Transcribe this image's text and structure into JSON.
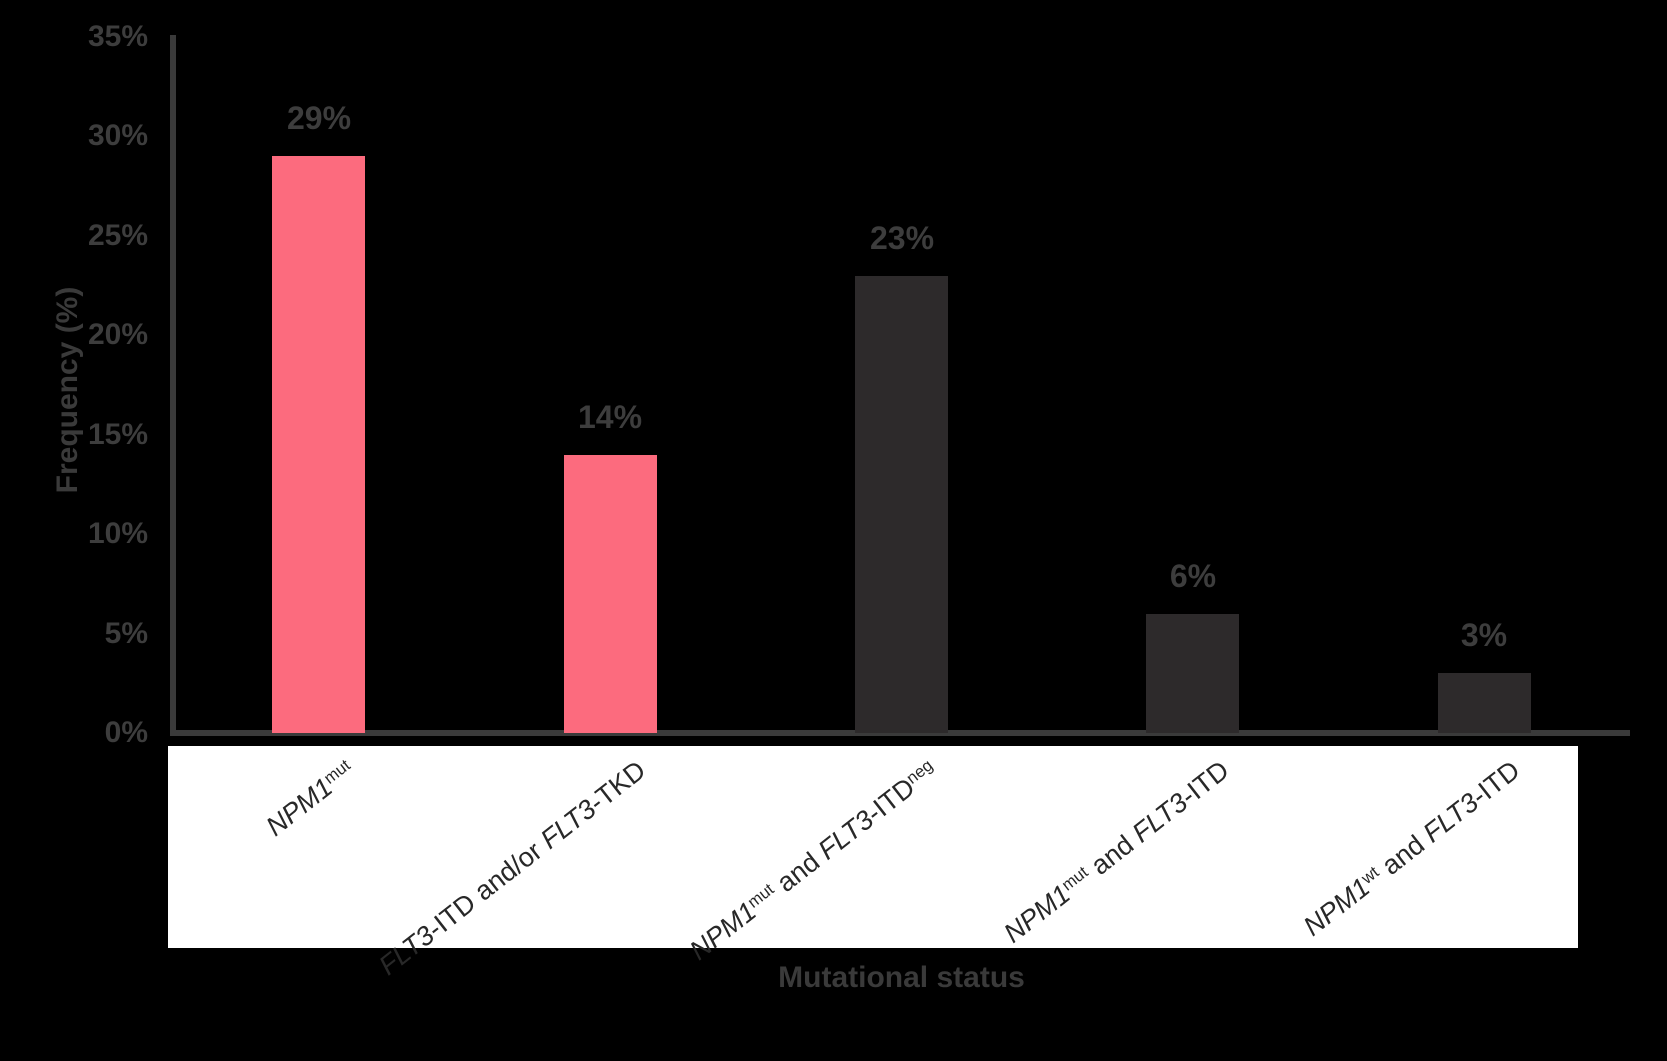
{
  "chart_data": {
    "type": "bar",
    "title": "",
    "xlabel": "Mutational status",
    "ylabel": "Frequency (%)",
    "ylim": [
      0,
      35
    ],
    "ytick_values": [
      0,
      5,
      10,
      15,
      20,
      25,
      30,
      35
    ],
    "ytick_labels": [
      "0%",
      "5%",
      "10%",
      "15%",
      "20%",
      "25%",
      "30%",
      "35%"
    ],
    "grid": false,
    "legend": false,
    "values": [
      29,
      14,
      23,
      6,
      3
    ],
    "value_labels": [
      "29%",
      "14%",
      "23%",
      "6%",
      "3%"
    ],
    "categories_plain": [
      "NPM1mut",
      "FLT3-ITD and/or FLT3-TKD",
      "NPM1mut and FLT3-ITDneg",
      "NPM1mut and FLT3-ITD",
      "NPM1wt and FLT3-ITD"
    ],
    "categories_rich": [
      [
        {
          "t": "NPM1",
          "i": true
        },
        {
          "t": "mut",
          "sup": true
        }
      ],
      [
        {
          "t": "FLT3",
          "i": true
        },
        {
          "t": "-ITD and/or "
        },
        {
          "t": "FLT3",
          "i": true
        },
        {
          "t": "-TKD"
        }
      ],
      [
        {
          "t": "NPM1",
          "i": true
        },
        {
          "t": "mut",
          "sup": true
        },
        {
          "t": " and "
        },
        {
          "t": "FLT3",
          "i": true
        },
        {
          "t": "-ITD"
        },
        {
          "t": "neg",
          "sup": true
        }
      ],
      [
        {
          "t": "NPM1",
          "i": true
        },
        {
          "t": "mut",
          "sup": true
        },
        {
          "t": " and "
        },
        {
          "t": "FLT3",
          "i": true
        },
        {
          "t": "-ITD"
        }
      ],
      [
        {
          "t": "NPM1",
          "i": true
        },
        {
          "t": "wt",
          "sup": true
        },
        {
          "t": " and "
        },
        {
          "t": "FLT3",
          "i": true
        },
        {
          "t": "-ITD"
        }
      ]
    ],
    "bar_colors": [
      "#FC6B7E",
      "#FC6B7E",
      "#2D2A2B",
      "#2D2A2B",
      "#2D2A2B"
    ]
  },
  "colors": {
    "background": "#000000",
    "bar_pink": "#FC6B7E",
    "bar_dark": "#2D2A2B",
    "axis_line": "#3A3A3A",
    "tick_text": "#3D3D3D",
    "value_label_text": "#3D3D3D",
    "category_text": "#282828",
    "label_band": "#FFFFFF",
    "axis_title_text": "#3A3A3A"
  }
}
